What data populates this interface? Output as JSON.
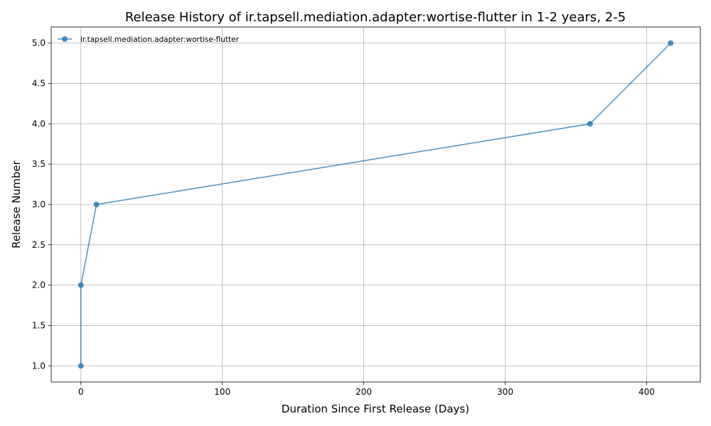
{
  "chart_data": {
    "type": "line",
    "title": "Release History of ir.tapsell.mediation.adapter:wortise-flutter in 1-2 years, 2-5",
    "xlabel": "Duration Since First Release (Days)",
    "ylabel": "Release Number",
    "xlim": [
      -21,
      438
    ],
    "ylim": [
      0.8,
      5.2
    ],
    "xticks": [
      0,
      100,
      200,
      300,
      400
    ],
    "xtick_labels": [
      "0",
      "100",
      "200",
      "300",
      "400"
    ],
    "yticks": [
      1.0,
      1.5,
      2.0,
      2.5,
      3.0,
      3.5,
      4.0,
      4.5,
      5.0
    ],
    "ytick_labels": [
      "1.0",
      "1.5",
      "2.0",
      "2.5",
      "3.0",
      "3.5",
      "4.0",
      "4.5",
      "5.0"
    ],
    "grid": true,
    "legend_position": "top-left",
    "series": [
      {
        "name": "ir.tapsell.mediation.adapter:wortise-flutter",
        "color": "#1f77b4",
        "marker": "circle",
        "x": [
          0,
          0,
          11,
          360,
          417
        ],
        "y": [
          1,
          2,
          3,
          4,
          5
        ]
      }
    ]
  }
}
